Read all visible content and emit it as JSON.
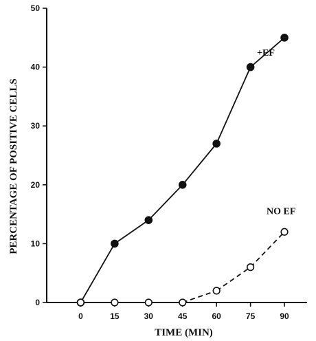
{
  "chart_data": {
    "type": "line",
    "xlabel": "TIME (MIN)",
    "ylabel": "PERCENTAGE OF POSITIVE CELLS",
    "x_ticks": [
      "0",
      "15",
      "30",
      "45",
      "60",
      "75",
      "90"
    ],
    "y_ticks": [
      "0",
      "10",
      "20",
      "30",
      "40",
      "50"
    ],
    "xlim": [
      -15,
      100
    ],
    "ylim": [
      0,
      50
    ],
    "grid": false,
    "legend": "none (series labeled inline)",
    "series": [
      {
        "name": "+EF",
        "style": "solid line, filled circle markers",
        "color": "#111111",
        "x": [
          0,
          15,
          30,
          45,
          60,
          75,
          90
        ],
        "y": [
          0,
          10,
          14,
          20,
          27,
          40,
          45
        ]
      },
      {
        "name": "NO EF",
        "style": "dashed line, open circle markers",
        "color": "#111111",
        "x": [
          0,
          15,
          30,
          45,
          60,
          75,
          90
        ],
        "y": [
          0,
          0,
          0,
          0,
          2,
          6,
          12
        ]
      }
    ]
  }
}
